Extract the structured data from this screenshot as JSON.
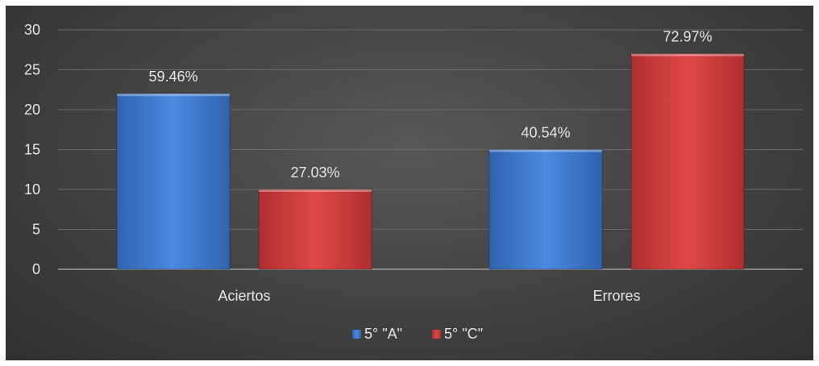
{
  "chart_data": {
    "type": "bar",
    "categories": [
      "Aciertos",
      "Errores"
    ],
    "series": [
      {
        "name": "5° \"A\"",
        "color": "#3f7fd9",
        "values": [
          22,
          15
        ],
        "labels": [
          "59.46%",
          "40.54%"
        ]
      },
      {
        "name": "5° \"C\"",
        "color": "#d64040",
        "values": [
          10,
          27
        ],
        "labels": [
          "27.03%",
          "72.97%"
        ]
      }
    ],
    "ylim": [
      0,
      30
    ],
    "yticks": [
      0,
      5,
      10,
      15,
      20,
      25,
      30
    ],
    "grid": true,
    "legend": "bottom",
    "background": "#454545"
  }
}
